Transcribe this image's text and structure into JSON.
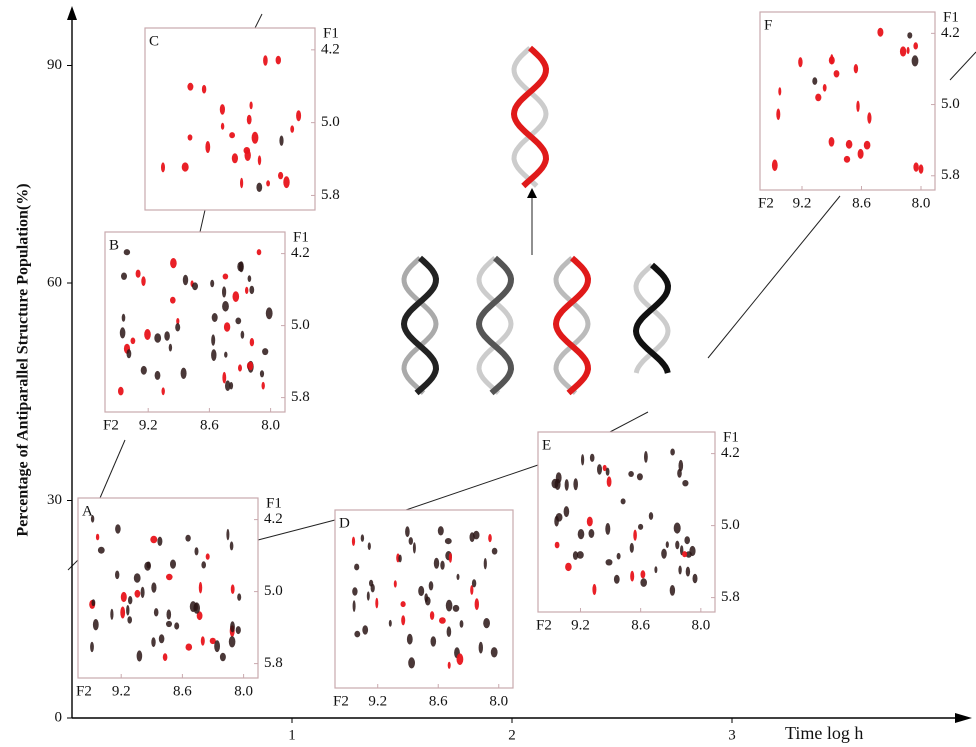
{
  "chart_data": {
    "type": "inset-spectra",
    "y_label": "Percentage of Antiparallel Structure Population(%)",
    "x_label": "Time log h",
    "ylim": [
      0,
      96
    ],
    "yticks": [
      0,
      30,
      60,
      90
    ],
    "xlim": [
      0,
      3.9
    ],
    "xticks": [
      1,
      2,
      3
    ],
    "panels": [
      {
        "label": "A",
        "f1_label": "F1",
        "f2_label": "F2",
        "f1ticks": [
          4.2,
          {
            "value": 5,
            "label": "5.0"
          },
          5.8
        ],
        "f2ticks": [
          9.2,
          8.6,
          {
            "value": 8,
            "label": "8.0"
          }
        ]
      },
      {
        "label": "B",
        "f1_label": "F1",
        "f2_label": "F2",
        "f1ticks": [
          4.2,
          {
            "value": 5,
            "label": "5.0"
          },
          5.8
        ],
        "f2ticks": [
          9.2,
          8.6,
          {
            "value": 8,
            "label": "8.0"
          }
        ]
      },
      {
        "label": "C",
        "f1_label": "F1",
        "f1ticks": [
          4.2,
          {
            "value": 5,
            "label": "5.0"
          },
          5.8
        ]
      },
      {
        "label": "D",
        "f2_label": "F2",
        "f2ticks": [
          9.2,
          8.6,
          {
            "value": 8,
            "label": "8.0"
          }
        ]
      },
      {
        "label": "E",
        "f1_label": "F1",
        "f2_label": "F2",
        "f1ticks": [
          4.2,
          {
            "value": 5,
            "label": "5.0"
          },
          5.8
        ],
        "f2ticks": [
          9.2,
          8.6,
          {
            "value": 8,
            "label": "8.0"
          }
        ]
      },
      {
        "label": "F",
        "f1_label": "F1",
        "f2_label": "F2",
        "f1ticks": [
          4.2,
          {
            "value": 5,
            "label": "5.0"
          },
          5.8
        ],
        "f2ticks": [
          9.2,
          8.6,
          {
            "value": 8,
            "label": "8.0"
          }
        ]
      }
    ]
  }
}
